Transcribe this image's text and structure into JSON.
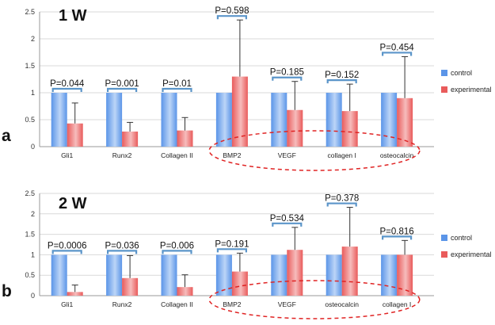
{
  "colors": {
    "control": "#5b95e8",
    "control_light": "#bcd5f7",
    "experimental": "#e95b5b",
    "experimental_light": "#f6bcbc",
    "bracket": "#5b95c9",
    "ellipse": "#e02424"
  },
  "chart_data": [
    {
      "type": "bar",
      "panel_letter": "a",
      "title": "1 W",
      "ylim": [
        0,
        2.5
      ],
      "ytick_values": [
        0,
        0.5,
        1,
        1.5,
        2,
        2.5
      ],
      "ytick_labels": [
        "0",
        "0.5",
        "1",
        "1.5",
        "2",
        "2.5"
      ],
      "categories": [
        "Gli1",
        "Runx2",
        "Collagen II",
        "BMP2",
        "VEGF",
        "collagen I",
        "osteocalcin"
      ],
      "series": [
        {
          "name": "control",
          "values": [
            1,
            1,
            1,
            1,
            1,
            1,
            1
          ]
        },
        {
          "name": "experimental",
          "values": [
            0.43,
            0.28,
            0.3,
            1.3,
            0.68,
            0.66,
            0.9
          ],
          "error": [
            0.38,
            0.17,
            0.24,
            1.05,
            0.53,
            0.5,
            0.77
          ]
        }
      ],
      "p_values": [
        "P=0.044",
        "P=0.001",
        "P=0.01",
        "P=0.598",
        "P=0.185",
        "P=0.152",
        "P=0.454"
      ],
      "highlight": {
        "from_category": 3,
        "to_category": 6
      },
      "legend": [
        "control",
        "experimental"
      ]
    },
    {
      "type": "bar",
      "panel_letter": "b",
      "title": "2 W",
      "ylim": [
        0,
        2.5
      ],
      "ytick_values": [
        0,
        0.5,
        1,
        1.5,
        2,
        2.5
      ],
      "ytick_labels": [
        "0",
        "0.5",
        "1",
        "1.5",
        "2",
        "2.5"
      ],
      "categories": [
        "Gli1",
        "Runx2",
        "Collagen II",
        "BMP2",
        "VEGF",
        "osteocalcin",
        "collagen I"
      ],
      "series": [
        {
          "name": "control",
          "values": [
            1,
            1,
            1,
            1,
            1,
            1,
            1
          ]
        },
        {
          "name": "experimental",
          "values": [
            0.09,
            0.43,
            0.21,
            0.59,
            1.12,
            1.2,
            1.0
          ],
          "error": [
            0.17,
            0.55,
            0.3,
            0.45,
            0.55,
            0.96,
            0.35
          ]
        }
      ],
      "p_values": [
        "P=0.0006",
        "P=0.036",
        "P=0.006",
        "P=0.191",
        "P=0.534",
        "P=0.378",
        "P=0.816"
      ],
      "highlight": {
        "from_category": 3,
        "to_category": 6
      },
      "legend": [
        "control",
        "experimental"
      ]
    }
  ]
}
